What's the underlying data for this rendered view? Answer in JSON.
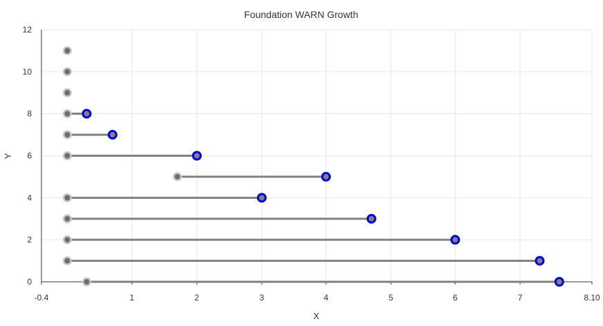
{
  "chart_data": {
    "type": "dumbbell",
    "title": "Foundation WARN Growth",
    "xlabel": "X",
    "ylabel": "Y",
    "xlim": [
      -0.4,
      8.1
    ],
    "ylim": [
      0,
      12
    ],
    "x_tick_labels": [
      "-0.4",
      "1",
      "2",
      "3",
      "4",
      "5",
      "6",
      "7",
      "8.10"
    ],
    "x_tick_values": [
      -0.4,
      1,
      2,
      3,
      4,
      5,
      6,
      7,
      8.1
    ],
    "y_tick_labels": [
      "0",
      "2",
      "4",
      "6",
      "8",
      "10",
      "12"
    ],
    "y_tick_values": [
      0,
      2,
      4,
      6,
      8,
      10,
      12
    ],
    "grid": true,
    "colors": {
      "start_fill": "#c8c8c8",
      "start_center": "#6e6e6e",
      "end_fill": "#808080",
      "end_stroke": "#0000dd",
      "connector": "#808080"
    },
    "points": [
      {
        "y": 0,
        "start": 0.3,
        "end": 7.6
      },
      {
        "y": 1,
        "start": 0.0,
        "end": 7.3
      },
      {
        "y": 2,
        "start": 0.0,
        "end": 6.0
      },
      {
        "y": 3,
        "start": 0.0,
        "end": 4.7
      },
      {
        "y": 4,
        "start": 0.0,
        "end": 3.0
      },
      {
        "y": 5,
        "start": 1.7,
        "end": 4.0
      },
      {
        "y": 6,
        "start": 0.0,
        "end": 2.0
      },
      {
        "y": 7,
        "start": 0.0,
        "end": 0.7
      },
      {
        "y": 8,
        "start": 0.0,
        "end": 0.3
      },
      {
        "y": 9,
        "start": 0.0,
        "end": null
      },
      {
        "y": 10,
        "start": 0.0,
        "end": null
      },
      {
        "y": 11,
        "start": 0.0,
        "end": null
      }
    ]
  }
}
